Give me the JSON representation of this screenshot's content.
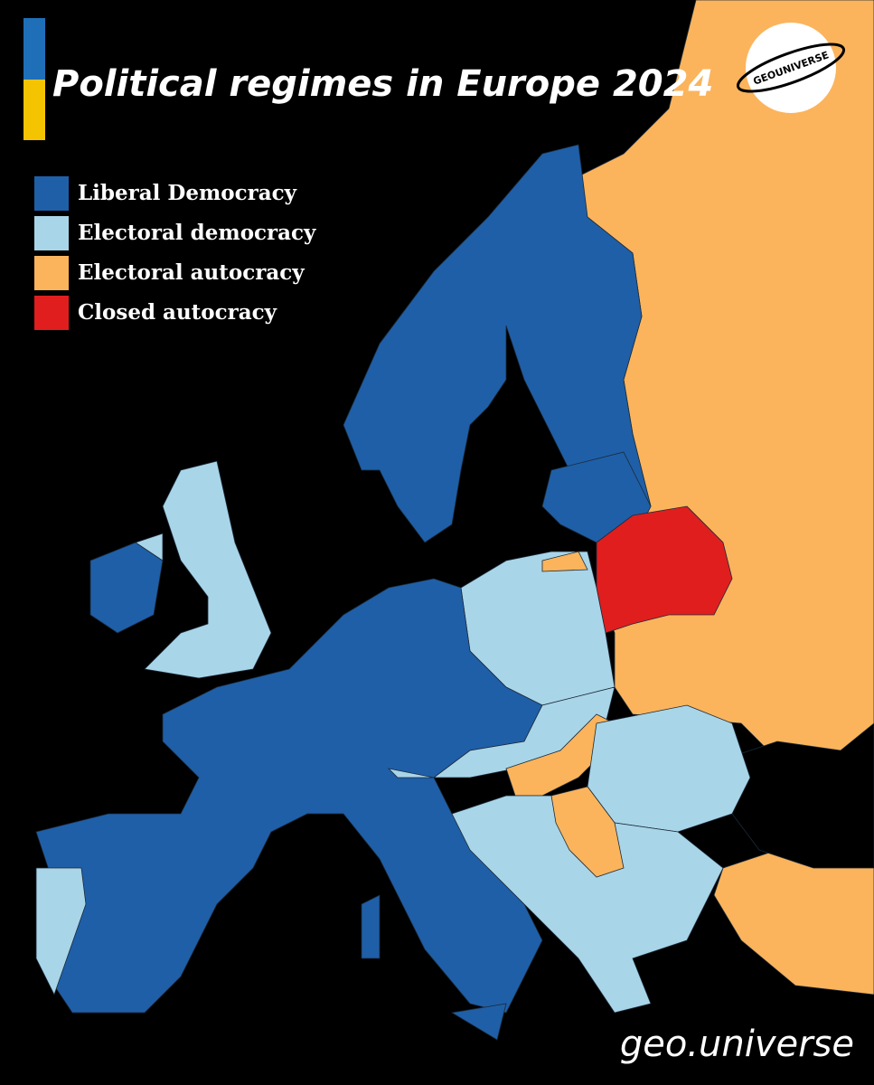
{
  "header": {
    "title": "Political regimes in Europe 2024",
    "logo": "GEOUNIVERSE"
  },
  "legend": [
    {
      "label": "Liberal Democracy",
      "color": "#1f5fa8"
    },
    {
      "label": "Electoral democracy",
      "color": "#a9d5e8"
    },
    {
      "label": "Electoral autocracy",
      "color": "#fbb45c"
    },
    {
      "label": "Closed autocracy",
      "color": "#e01e1e"
    }
  ],
  "footer": {
    "watermark": "geo.universe"
  }
}
